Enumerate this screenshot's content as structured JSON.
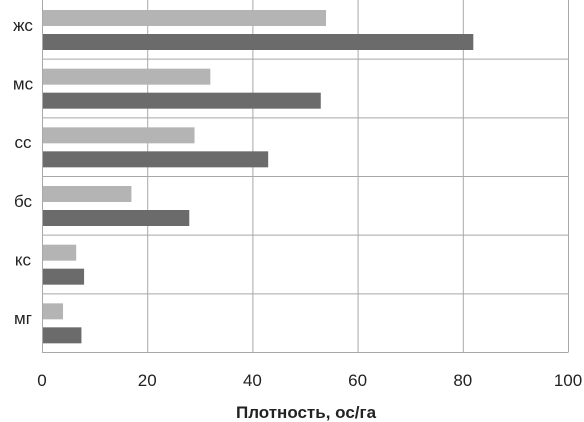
{
  "chart_data": {
    "type": "bar",
    "orientation": "horizontal",
    "categories": [
      "жс",
      "мс",
      "сс",
      "бс",
      "кс",
      "мг"
    ],
    "series": [
      {
        "values": [
          54,
          32,
          29,
          17,
          6.5,
          4
        ],
        "color": "#b4b4b4"
      },
      {
        "values": [
          82,
          53,
          43,
          28,
          8,
          7.5
        ],
        "color": "#6b6b6b"
      }
    ],
    "xlabel": "Плотность, ос/га",
    "xlim": [
      0,
      100
    ],
    "xticks": [
      0,
      20,
      40,
      60,
      80,
      100
    ],
    "grid": true,
    "legend": "none"
  }
}
